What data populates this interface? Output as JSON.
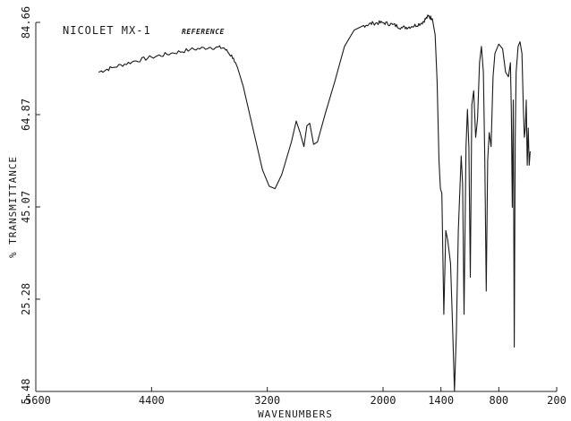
{
  "chart_data": {
    "type": "line",
    "title": "NICOLET MX-1",
    "subtitle": "REFERENCE",
    "xlabel": "WAVENUMBERS",
    "ylabel": "% TRANSMITTANCE",
    "xlim": [
      5600,
      200
    ],
    "ylim": [
      5.48,
      84.66
    ],
    "x_reversed": true,
    "grid": false,
    "x_ticks": [
      "5600",
      "4400",
      "3200",
      "2000",
      "1400",
      "800",
      "200"
    ],
    "x_tick_values": [
      5600,
      4400,
      3200,
      2000,
      1400,
      800,
      200
    ],
    "y_ticks": [
      "5.48",
      "25.28",
      "45.07",
      "64.87",
      "84.66"
    ],
    "y_tick_values": [
      5.48,
      25.28,
      45.07,
      64.87,
      84.66
    ],
    "series": [
      {
        "values_xy": [
          [
            4950,
            74.0
          ],
          [
            4800,
            75.0
          ],
          [
            4600,
            76.2
          ],
          [
            4400,
            77.2
          ],
          [
            4200,
            78.0
          ],
          [
            4000,
            78.8
          ],
          [
            3800,
            79.3
          ],
          [
            3650,
            79.2
          ],
          [
            3550,
            77.0
          ],
          [
            3450,
            71.0
          ],
          [
            3350,
            62.0
          ],
          [
            3250,
            53.0
          ],
          [
            3180,
            49.5
          ],
          [
            3120,
            49.0
          ],
          [
            3050,
            52.0
          ],
          [
            2950,
            59.0
          ],
          [
            2900,
            63.5
          ],
          [
            2860,
            61.0
          ],
          [
            2820,
            58.0
          ],
          [
            2790,
            62.5
          ],
          [
            2760,
            63.0
          ],
          [
            2720,
            58.5
          ],
          [
            2680,
            59.0
          ],
          [
            2600,
            65.0
          ],
          [
            2500,
            72.0
          ],
          [
            2400,
            79.5
          ],
          [
            2300,
            83.0
          ],
          [
            2200,
            84.0
          ],
          [
            2100,
            84.5
          ],
          [
            2000,
            84.6
          ],
          [
            1900,
            84.2
          ],
          [
            1800,
            83.5
          ],
          [
            1700,
            83.8
          ],
          [
            1600,
            84.5
          ],
          [
            1530,
            86.0
          ],
          [
            1490,
            85.5
          ],
          [
            1460,
            82.0
          ],
          [
            1440,
            72.0
          ],
          [
            1420,
            55.0
          ],
          [
            1405,
            49.0
          ],
          [
            1390,
            48.0
          ],
          [
            1370,
            22.0
          ],
          [
            1350,
            40.0
          ],
          [
            1330,
            38.0
          ],
          [
            1300,
            33.0
          ],
          [
            1280,
            20.0
          ],
          [
            1260,
            5.48
          ],
          [
            1240,
            18.0
          ],
          [
            1220,
            40.0
          ],
          [
            1190,
            56.0
          ],
          [
            1175,
            50.0
          ],
          [
            1160,
            22.0
          ],
          [
            1140,
            58.0
          ],
          [
            1125,
            66.0
          ],
          [
            1110,
            58.0
          ],
          [
            1095,
            30.0
          ],
          [
            1080,
            67.0
          ],
          [
            1060,
            70.0
          ],
          [
            1040,
            60.0
          ],
          [
            1020,
            64.0
          ],
          [
            1000,
            76.0
          ],
          [
            980,
            79.5
          ],
          [
            960,
            74.0
          ],
          [
            945,
            55.0
          ],
          [
            930,
            27.0
          ],
          [
            915,
            55.0
          ],
          [
            900,
            61.0
          ],
          [
            880,
            58.0
          ],
          [
            860,
            73.0
          ],
          [
            840,
            78.0
          ],
          [
            800,
            80.0
          ],
          [
            760,
            79.0
          ],
          [
            730,
            74.0
          ],
          [
            700,
            73.0
          ],
          [
            680,
            76.0
          ],
          [
            670,
            66.0
          ],
          [
            660,
            45.0
          ],
          [
            650,
            68.0
          ],
          [
            640,
            15.0
          ],
          [
            630,
            60.0
          ],
          [
            620,
            74.0
          ],
          [
            600,
            79.5
          ],
          [
            580,
            80.5
          ],
          [
            560,
            78.0
          ],
          [
            545,
            66.0
          ],
          [
            535,
            60.0
          ],
          [
            525,
            62.0
          ],
          [
            515,
            68.0
          ],
          [
            505,
            54.0
          ],
          [
            495,
            62.0
          ],
          [
            485,
            54.0
          ],
          [
            475,
            57.0
          ]
        ]
      }
    ]
  }
}
